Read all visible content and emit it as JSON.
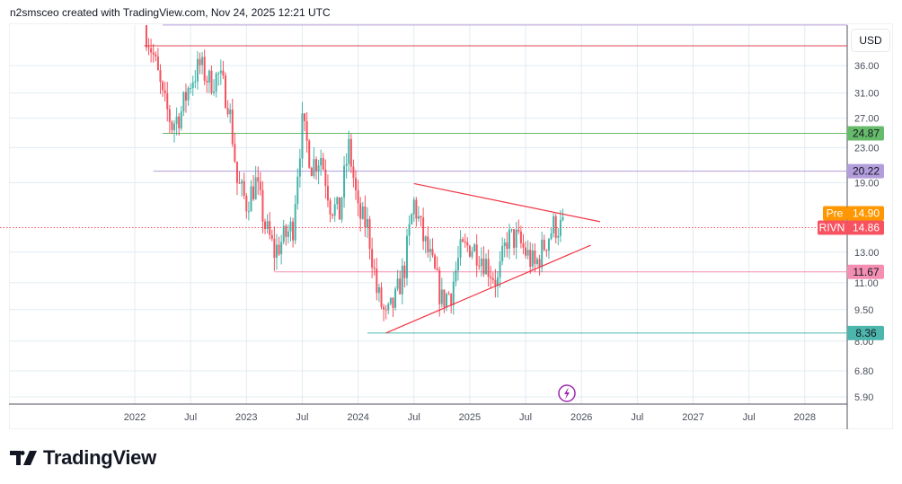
{
  "header": {
    "text": "n2smsceo created with TradingView.com, Nov 24, 2025 12:21 UTC"
  },
  "currency": "USD",
  "logo_text": "TradingView",
  "colors": {
    "up": "#26a69a",
    "down": "#f23645",
    "grid": "#e1ecf2"
  },
  "chart_data": {
    "type": "candlestick",
    "symbol": "RIVN",
    "scale": "log",
    "ylim": [
      5.7,
      45
    ],
    "y_ticks": [
      "36.00",
      "31.00",
      "27.00",
      "23.00",
      "19.00",
      "13.00",
      "11.00",
      "9.50",
      "8.00",
      "6.80",
      "5.90"
    ],
    "x_ticks": [
      "2022",
      "Jul",
      "2023",
      "Jul",
      "2024",
      "Jul",
      "2025",
      "Jul",
      "2026",
      "Jul",
      "2027",
      "Jul",
      "2028"
    ],
    "monthly_closes": [
      [
        "2022-02",
        45
      ],
      [
        "2022-03",
        38
      ],
      [
        "2022-04",
        30
      ],
      [
        "2022-05",
        26
      ],
      [
        "2022-06",
        28
      ],
      [
        "2022-07",
        33
      ],
      [
        "2022-08",
        36
      ],
      [
        "2022-09",
        33
      ],
      [
        "2022-10",
        34
      ],
      [
        "2022-11",
        30
      ],
      [
        "2022-12",
        19
      ],
      [
        "2023-01",
        17
      ],
      [
        "2023-02",
        19
      ],
      [
        "2023-03",
        15
      ],
      [
        "2023-04",
        13
      ],
      [
        "2023-05",
        14
      ],
      [
        "2023-06",
        15
      ],
      [
        "2023-07",
        26
      ],
      [
        "2023-08",
        21
      ],
      [
        "2023-09",
        22
      ],
      [
        "2023-10",
        17
      ],
      [
        "2023-11",
        16
      ],
      [
        "2023-12",
        23
      ],
      [
        "2024-01",
        16
      ],
      [
        "2024-02",
        15
      ],
      [
        "2024-03",
        10.5
      ],
      [
        "2024-04",
        9
      ],
      [
        "2024-05",
        10
      ],
      [
        "2024-06",
        12
      ],
      [
        "2024-07",
        17
      ],
      [
        "2024-08",
        14
      ],
      [
        "2024-09",
        12
      ],
      [
        "2024-10",
        10
      ],
      [
        "2024-11",
        10.5
      ],
      [
        "2024-12",
        13
      ],
      [
        "2025-01",
        13.5
      ],
      [
        "2025-02",
        13
      ],
      [
        "2025-03",
        12
      ],
      [
        "2025-04",
        11
      ],
      [
        "2025-05",
        14
      ],
      [
        "2025-06",
        14
      ],
      [
        "2025-07",
        13
      ],
      [
        "2025-08",
        12
      ],
      [
        "2025-09",
        13.5
      ],
      [
        "2025-10",
        15
      ],
      [
        "2025-11",
        14.86
      ]
    ],
    "horizontal_levels": [
      {
        "price": 44.9,
        "from": "2022-04",
        "color": "#b39ddb"
      },
      {
        "price": 40.1,
        "from": "2022-02",
        "color": "#e0454f"
      },
      {
        "price": 24.87,
        "from": "2022-04",
        "color": "#66bb6a",
        "label": "24.87"
      },
      {
        "price": 20.22,
        "from": "2022-03",
        "color": "#b39ddb",
        "label": "20.22"
      },
      {
        "price": 11.67,
        "from": "2023-04",
        "color": "#f48fb1",
        "label": "11.67"
      },
      {
        "price": 8.36,
        "from": "2024-02",
        "color": "#4db6ac",
        "label": "8.36"
      }
    ],
    "trendlines": [
      {
        "from": [
          "2024-07",
          18.9
        ],
        "to": [
          "2026-03",
          15.35
        ],
        "color": "#f23645"
      },
      {
        "from": [
          "2024-04",
          8.36
        ],
        "to": [
          "2026-02",
          13.5
        ],
        "color": "#f23645"
      }
    ],
    "last_price": {
      "symbol": "RIVN",
      "value": 14.86,
      "label": "14.86",
      "color": "#f7525f"
    },
    "pre_price": {
      "label": "Pre",
      "value": 14.9,
      "text": "14.90",
      "color": "#ff9800"
    }
  }
}
